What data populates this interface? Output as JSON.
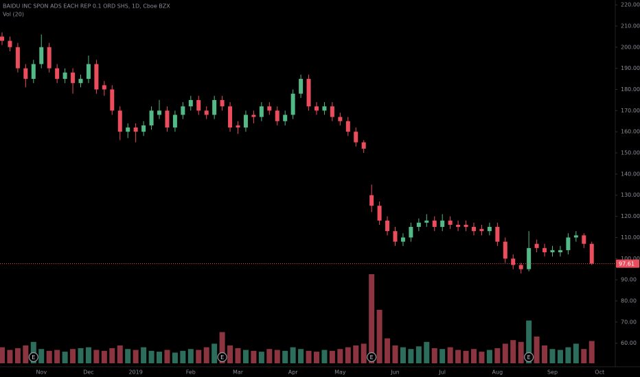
{
  "chart_data": {
    "type": "candlestick",
    "title": "BAIDU INC SPON ADS EACH REP 0.1 ORD SHS, 1D, Cboe BZX",
    "volume_title": "Vol (20)",
    "categories": [
      null,
      null,
      null,
      null,
      null,
      "Nov",
      null,
      null,
      null,
      null,
      null,
      "Dec",
      null,
      null,
      null,
      null,
      null,
      "2019",
      null,
      null,
      null,
      null,
      null,
      null,
      "Feb",
      null,
      null,
      null,
      null,
      null,
      "Mar",
      null,
      null,
      null,
      null,
      null,
      null,
      "Apr",
      null,
      null,
      null,
      null,
      null,
      "May",
      null,
      null,
      null,
      null,
      null,
      null,
      "Jun",
      null,
      null,
      null,
      null,
      null,
      "Jul",
      null,
      null,
      null,
      null,
      null,
      null,
      "Aug",
      null,
      null,
      null,
      null,
      null,
      null,
      "Sep",
      null,
      null,
      null,
      null,
      null,
      "Oct",
      null,
      null
    ],
    "open": [
      205,
      203,
      200,
      190,
      185,
      192,
      200,
      190,
      185,
      188,
      183,
      185,
      192,
      182,
      180,
      170,
      160,
      162,
      160,
      163,
      168,
      170,
      162,
      168,
      172,
      175,
      170,
      168,
      175,
      172,
      163,
      162,
      168,
      167,
      172,
      170,
      165,
      168,
      178,
      185,
      172,
      170,
      172,
      167,
      165,
      160,
      155,
      130,
      125,
      118,
      113,
      108,
      110,
      115,
      117,
      118,
      115,
      118,
      116,
      116,
      115,
      114,
      113,
      115,
      108,
      100,
      97,
      95,
      107,
      105,
      103,
      103,
      104,
      110,
      111,
      107,
      null,
      null,
      null
    ],
    "high": [
      207,
      205,
      202,
      192,
      194,
      206,
      202,
      192,
      190,
      190,
      187,
      196,
      194,
      184,
      182,
      172,
      164,
      164,
      165,
      172,
      175,
      172,
      170,
      174,
      177,
      177,
      172,
      177,
      177,
      174,
      165,
      170,
      170,
      174,
      174,
      172,
      170,
      180,
      187,
      187,
      174,
      174,
      174,
      169,
      167,
      162,
      156,
      135,
      127,
      120,
      115,
      112,
      117,
      119,
      121,
      120,
      121,
      120,
      118,
      118,
      117,
      116,
      117,
      117,
      110,
      102,
      98,
      113,
      109,
      107,
      106,
      106,
      112,
      113,
      112,
      108,
      null,
      null,
      null
    ],
    "low": [
      201,
      198,
      188,
      181,
      183,
      190,
      188,
      183,
      183,
      178,
      181,
      183,
      178,
      177,
      168,
      156,
      157,
      155,
      158,
      161,
      166,
      160,
      160,
      166,
      170,
      168,
      166,
      166,
      170,
      160,
      159,
      160,
      164,
      165,
      168,
      163,
      163,
      166,
      176,
      170,
      168,
      168,
      165,
      163,
      158,
      153,
      150,
      122,
      116,
      111,
      106,
      106,
      108,
      113,
      115,
      113,
      113,
      114,
      113,
      113,
      111,
      111,
      111,
      106,
      98,
      95,
      93,
      94,
      103,
      101,
      101,
      101,
      102,
      108,
      105,
      97,
      null,
      null,
      null
    ],
    "close": [
      203,
      200,
      190,
      185,
      192,
      200,
      190,
      185,
      188,
      183,
      185,
      192,
      180,
      180,
      170,
      160,
      162,
      160,
      163,
      170,
      170,
      162,
      168,
      172,
      175,
      170,
      168,
      175,
      172,
      162,
      162,
      168,
      167,
      172,
      170,
      165,
      168,
      178,
      185,
      172,
      170,
      172,
      167,
      165,
      160,
      155,
      152,
      125,
      118,
      113,
      108,
      110,
      115,
      117,
      118,
      115,
      118,
      116,
      115,
      115,
      113,
      113,
      115,
      108,
      100,
      97,
      95,
      105,
      105,
      103,
      104,
      104,
      110,
      111,
      107,
      97.61,
      null,
      null,
      null
    ],
    "volume": [
      18,
      15,
      17,
      20,
      24,
      16,
      14,
      15,
      13,
      16,
      17,
      18,
      15,
      14,
      17,
      20,
      16,
      15,
      18,
      14,
      13,
      15,
      12,
      14,
      16,
      15,
      18,
      22,
      35,
      20,
      17,
      15,
      14,
      13,
      16,
      15,
      14,
      18,
      16,
      14,
      13,
      15,
      14,
      16,
      18,
      20,
      22,
      100,
      60,
      28,
      20,
      18,
      16,
      19,
      24,
      17,
      16,
      18,
      15,
      14,
      16,
      13,
      15,
      17,
      22,
      26,
      24,
      48,
      30,
      20,
      16,
      15,
      18,
      22,
      16,
      25,
      null,
      null,
      null
    ],
    "up_color": "#53b987",
    "down_color": "#eb4d5c",
    "volume_up_color": "#2d6d5c",
    "volume_down_color": "#8c3540",
    "ylim": [
      50.5,
      222.3
    ],
    "yticks": [
      {
        "value": 60,
        "label": "60.00"
      },
      {
        "value": 70,
        "label": "70.00"
      },
      {
        "value": 80,
        "label": "80.00"
      },
      {
        "value": 90,
        "label": "90.00"
      },
      {
        "value": 100,
        "label": "100.00"
      },
      {
        "value": 110,
        "label": "110.00"
      },
      {
        "value": 120,
        "label": "120.00"
      },
      {
        "value": 130,
        "label": "130.00"
      },
      {
        "value": 140,
        "label": "140.00"
      },
      {
        "value": 150,
        "label": "150.00"
      },
      {
        "value": 160,
        "label": "160.00"
      },
      {
        "value": 170,
        "label": "170.00"
      },
      {
        "value": 180,
        "label": "180.00"
      },
      {
        "value": 190,
        "label": "190.00"
      },
      {
        "value": 200,
        "label": "200.00"
      },
      {
        "value": 210,
        "label": "210.00"
      },
      {
        "value": 220,
        "label": "220.00"
      }
    ],
    "volume_lim": [
      0,
      100
    ],
    "last_price": 97.61,
    "annotations": [
      {
        "text": "E",
        "at": 4
      },
      {
        "text": "E",
        "at": 28
      },
      {
        "text": "E",
        "at": 47
      },
      {
        "text": "E",
        "at": 67
      }
    ]
  }
}
